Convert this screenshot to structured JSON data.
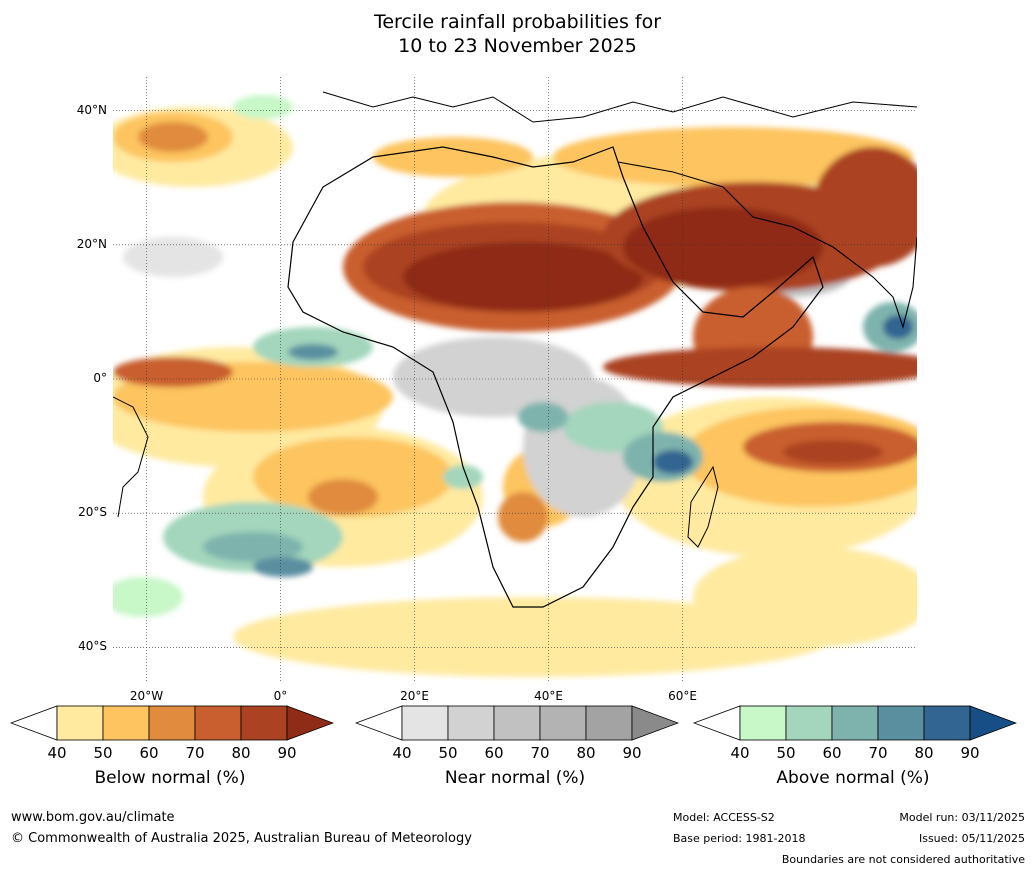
{
  "title_line1": "Tercile rainfall probabilities for",
  "title_line2": "10 to 23 November 2025",
  "chart_data": {
    "type": "heatmap",
    "title": "Tercile rainfall probabilities for 10 to 23 November 2025",
    "region": "Africa",
    "lat_range": [
      -45,
      45
    ],
    "lon_range": [
      -25,
      95
    ],
    "lat_ticks": [
      "40°N",
      "20°N",
      "0°",
      "20°S",
      "40°S"
    ],
    "lat_tick_values": [
      40,
      20,
      0,
      -20,
      -40
    ],
    "lon_ticks": [
      "20°W",
      "0°",
      "20°E",
      "40°E",
      "60°E"
    ],
    "lon_tick_values": [
      -20,
      0,
      20,
      40,
      60
    ],
    "categories": [
      {
        "name": "Below normal (%)",
        "levels": [
          40,
          50,
          60,
          70,
          80,
          90
        ],
        "colors": [
          "#ffeaa0",
          "#fdc45f",
          "#e08b3e",
          "#c95f2e",
          "#ab4322",
          "#8f2c17"
        ]
      },
      {
        "name": "Near normal (%)",
        "levels": [
          40,
          50,
          60,
          70,
          80,
          90
        ],
        "colors": [
          "#e4e4e4",
          "#d2d2d2",
          "#c1c1c1",
          "#b3b3b3",
          "#a3a3a3",
          "#8a8a8a"
        ]
      },
      {
        "name": "Above normal (%)",
        "levels": [
          40,
          50,
          60,
          70,
          80,
          90
        ],
        "colors": [
          "#c8f7c8",
          "#a3d6bc",
          "#7eb3ad",
          "#5a8fa0",
          "#326591",
          "#174e86"
        ]
      }
    ],
    "grid": true,
    "legend_placement": "bottom"
  },
  "colorbar_labels": {
    "below": "Below normal (%)",
    "near": "Near normal (%)",
    "above": "Above normal (%)"
  },
  "footer": {
    "website": "www.bom.gov.au/climate",
    "copyright": "© Commonwealth of Australia 2025, Australian Bureau of Meteorology",
    "model": "Model: ACCESS-S2",
    "base_period": "Base period: 1981-2018",
    "model_run": "Model run: 03/11/2025",
    "issued": "Issued: 05/11/2025",
    "disclaimer": "Boundaries are not considered authoritative"
  }
}
